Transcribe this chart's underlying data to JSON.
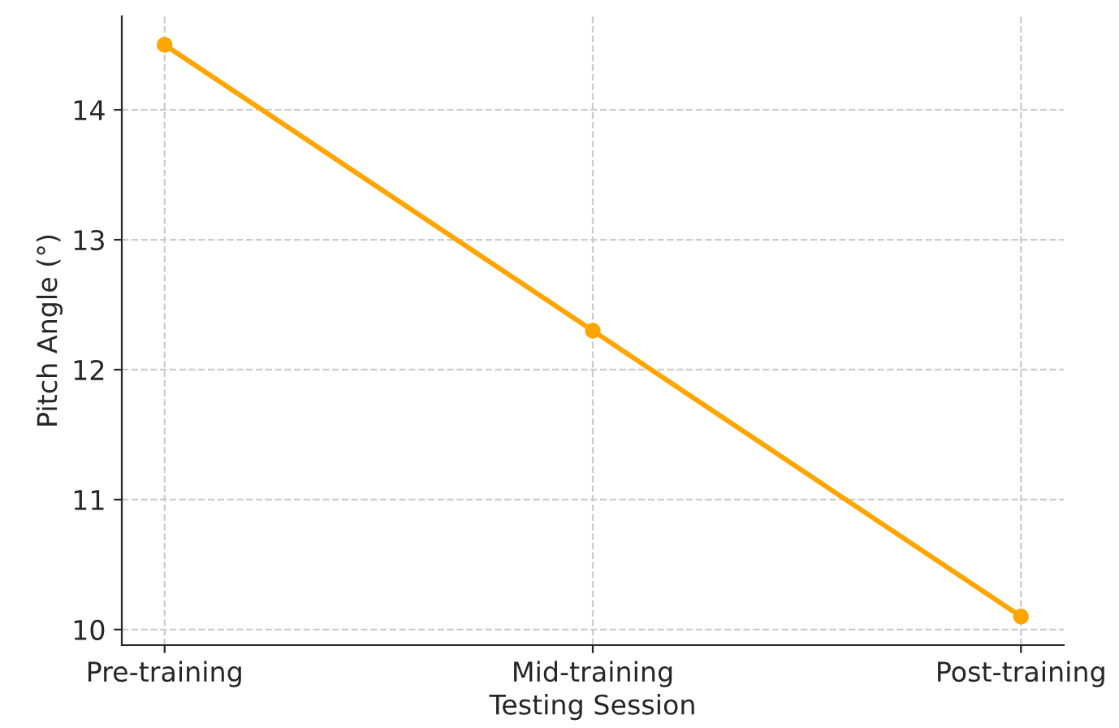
{
  "chart_data": {
    "type": "line",
    "xlabel": "Testing Session",
    "ylabel": "Pitch Angle (°)",
    "categories": [
      "Pre-training",
      "Mid-training",
      "Post-training"
    ],
    "series": [
      {
        "color": "#ffa500",
        "values": [
          14.5,
          12.3,
          10.1
        ]
      }
    ],
    "ylim": [
      9.88,
      14.72
    ],
    "yticks": [
      10,
      11,
      12,
      13,
      14
    ],
    "grid": true,
    "marker": "circle",
    "line_style": "solid"
  }
}
